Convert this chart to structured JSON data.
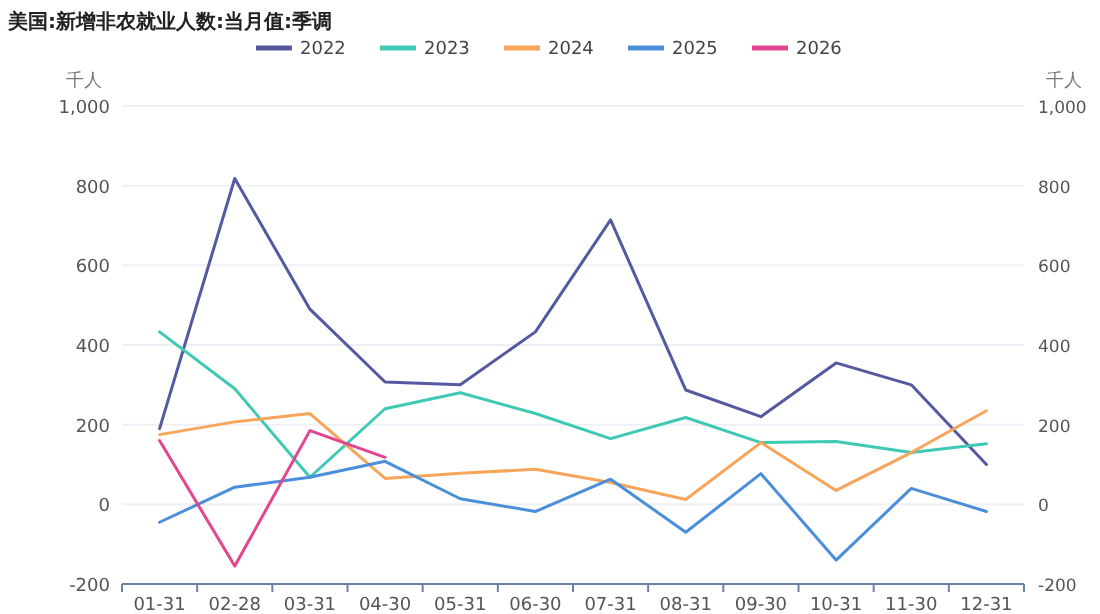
{
  "chart_data": {
    "type": "line",
    "title": "美国:新增非农就业人数:当月值:季调",
    "ylabel": "千人",
    "y2label": "千人",
    "categories": [
      "01-31",
      "02-28",
      "03-31",
      "04-30",
      "05-31",
      "06-30",
      "07-31",
      "08-31",
      "09-30",
      "10-31",
      "11-30",
      "12-31"
    ],
    "series": [
      {
        "name": "2022",
        "color": "#5459a0",
        "values": [
          190,
          818,
          490,
          307,
          300,
          433,
          714,
          287,
          220,
          355,
          300,
          100
        ]
      },
      {
        "name": "2023",
        "color": "#3fc9b4",
        "values": [
          433,
          290,
          68,
          240,
          280,
          228,
          165,
          218,
          155,
          158,
          130,
          152
        ]
      },
      {
        "name": "2024",
        "color": "#f7a55a",
        "values": [
          175,
          207,
          228,
          65,
          78,
          88,
          55,
          12,
          155,
          35,
          130,
          235
        ]
      },
      {
        "name": "2025",
        "color": "#4b8fdb",
        "values": [
          -45,
          43,
          68,
          108,
          14,
          -18,
          63,
          -70,
          77,
          -140,
          40,
          -18
        ]
      },
      {
        "name": "2026",
        "color": "#e2468f",
        "values": [
          160,
          -155,
          185,
          118,
          null,
          null,
          null,
          null,
          null,
          null,
          null,
          null
        ]
      }
    ],
    "ylim": [
      -200,
      1000
    ],
    "yticks": [
      -200,
      0,
      200,
      400,
      600,
      800,
      {
        "value": 1000,
        "label": "1,000"
      }
    ],
    "y2lim": [
      -200,
      1000
    ],
    "y2ticks": [
      -200,
      0,
      200,
      400,
      600,
      800,
      {
        "value": 1000,
        "label": "1,000"
      }
    ],
    "grid": "y",
    "legend": "top",
    "marker": "none",
    "line_style": "solid"
  }
}
